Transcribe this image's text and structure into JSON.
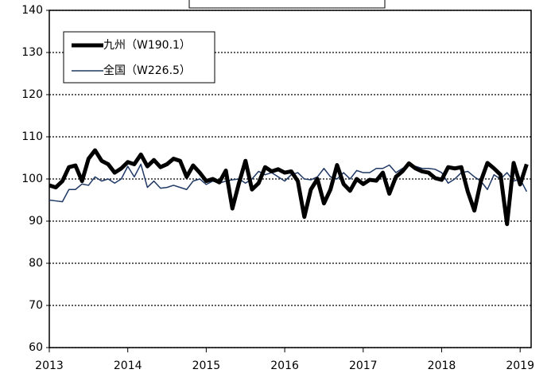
{
  "chart_data": {
    "type": "line",
    "x": [
      2013,
      2013.083,
      2013.167,
      2013.25,
      2013.333,
      2013.417,
      2013.5,
      2013.583,
      2013.667,
      2013.75,
      2013.833,
      2013.917,
      2014,
      2014.083,
      2014.167,
      2014.25,
      2014.333,
      2014.417,
      2014.5,
      2014.583,
      2014.667,
      2014.75,
      2014.833,
      2014.917,
      2015,
      2015.083,
      2015.167,
      2015.25,
      2015.333,
      2015.417,
      2015.5,
      2015.583,
      2015.667,
      2015.75,
      2015.833,
      2015.917,
      2016,
      2016.083,
      2016.167,
      2016.25,
      2016.333,
      2016.417,
      2016.5,
      2016.583,
      2016.667,
      2016.75,
      2016.833,
      2016.917,
      2017,
      2017.083,
      2017.167,
      2017.25,
      2017.333,
      2017.417,
      2017.5,
      2017.583,
      2017.667,
      2017.75,
      2017.833,
      2017.917,
      2018,
      2018.083,
      2018.167,
      2018.25,
      2018.333,
      2018.417,
      2018.5,
      2018.583,
      2018.667,
      2018.75,
      2018.833,
      2018.917,
      2019,
      2019.083
    ],
    "series": [
      {
        "name": "九州（W190.1）",
        "color": "#000000",
        "width": 5,
        "values": [
          98.5,
          98,
          99.5,
          102.8,
          103.2,
          99.5,
          104.8,
          106.8,
          104.3,
          103.5,
          101.5,
          102.5,
          104,
          103.5,
          105.8,
          103,
          104.5,
          102.8,
          103.5,
          104.8,
          104.3,
          100.5,
          103.2,
          101.5,
          99.5,
          100,
          99.2,
          102,
          93,
          99,
          104.3,
          97.5,
          99,
          102.8,
          101.8,
          102.3,
          101.5,
          101.8,
          99.5,
          91,
          97.5,
          100,
          94.2,
          97.5,
          103.3,
          98.8,
          97.2,
          100,
          98.8,
          99.8,
          99.6,
          101.5,
          96.5,
          100.5,
          101.8,
          103.7,
          102.5,
          101.8,
          101.5,
          100.2,
          99.8,
          102.8,
          102.5,
          102.8,
          97,
          92.5,
          99.5,
          103.8,
          102.5,
          101,
          89.3,
          103.8,
          98.7,
          103.5
        ]
      },
      {
        "name": "全国（W226.5）",
        "color": "#1f3864",
        "width": 1.5,
        "values": [
          95,
          94.8,
          94.6,
          97.5,
          97.5,
          98.8,
          98.5,
          100.5,
          99.5,
          100,
          99,
          100,
          103,
          100.5,
          103.5,
          98,
          99.5,
          97.8,
          98,
          98.5,
          98,
          97.5,
          99.5,
          100,
          98.7,
          99.5,
          99,
          99.5,
          99.8,
          100,
          99,
          100,
          101.8,
          101,
          101.5,
          100.5,
          99.5,
          101,
          101.5,
          100,
          99.8,
          100.5,
          102.5,
          100.5,
          100,
          101.5,
          100,
          102,
          101.5,
          101.5,
          102.5,
          102.5,
          103.3,
          101.5,
          102.5,
          103.3,
          103,
          102.5,
          102.5,
          102.3,
          101.5,
          99,
          100,
          101.5,
          101.8,
          100.5,
          99.5,
          97.5,
          101,
          100,
          101.5,
          99.5,
          100,
          97
        ]
      }
    ],
    "xlim": [
      2013,
      2019.14
    ],
    "xticks": [
      2013,
      2014,
      2015,
      2016,
      2017,
      2018,
      2019
    ],
    "ylim": [
      60,
      140
    ],
    "yticks": [
      60,
      70,
      80,
      90,
      100,
      110,
      120,
      130,
      140
    ],
    "grid": true,
    "legend": "upper left"
  }
}
